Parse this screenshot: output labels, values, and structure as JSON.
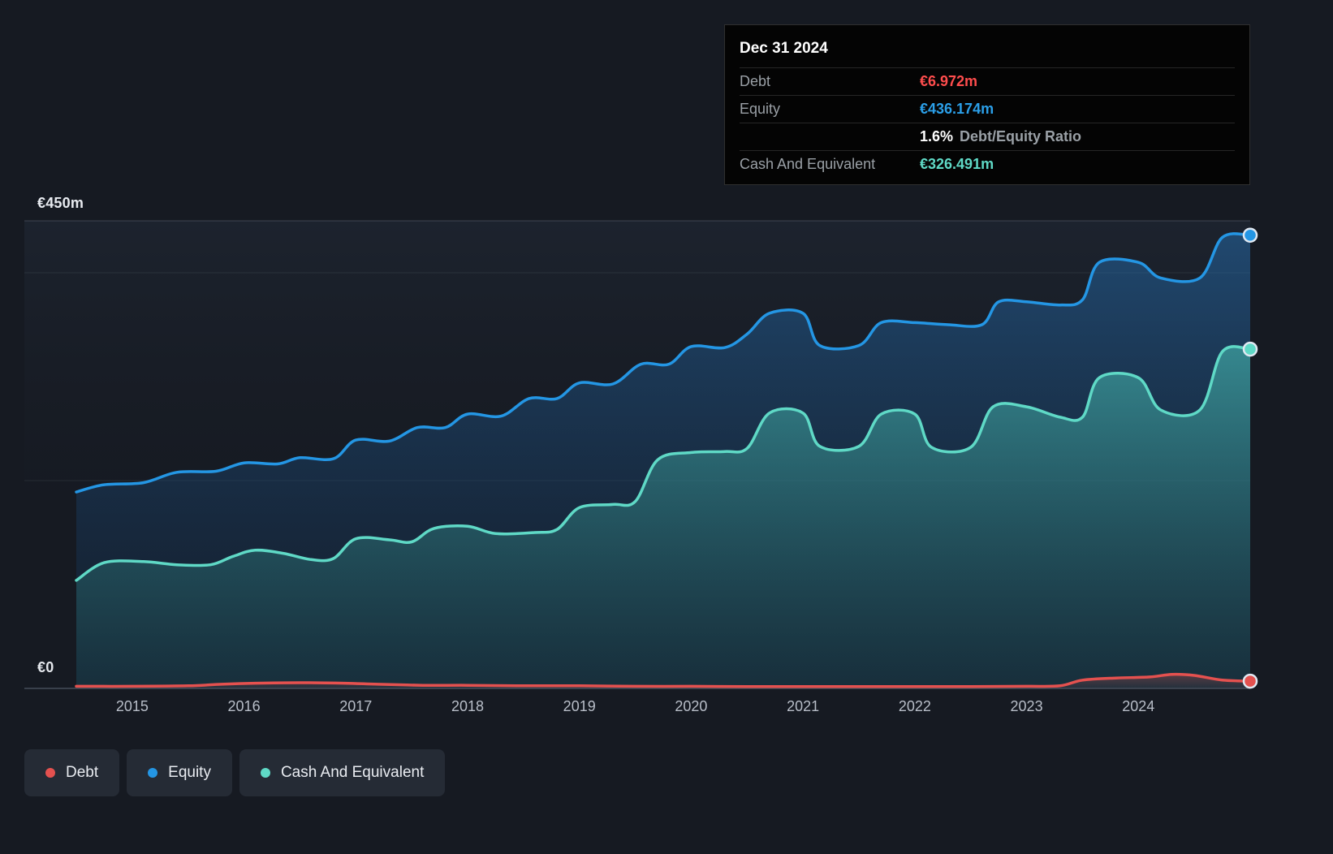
{
  "y_axis": {
    "top_label": "€450m",
    "zero_label": "€0"
  },
  "x_axis": {
    "years": [
      "2015",
      "2016",
      "2017",
      "2018",
      "2019",
      "2020",
      "2021",
      "2022",
      "2023",
      "2024"
    ]
  },
  "tooltip": {
    "date": "Dec 31 2024",
    "rows": [
      {
        "label": "Debt",
        "value": "€6.972m",
        "color": "#ff4d4d"
      },
      {
        "label": "Equity",
        "value": "€436.174m",
        "color": "#2b9fe8"
      },
      {
        "label": "",
        "value": "1.6%",
        "suffix": "Debt/Equity Ratio",
        "color": "#ffffff"
      },
      {
        "label": "Cash And Equivalent",
        "value": "€326.491m",
        "color": "#5fd9c6"
      }
    ]
  },
  "legend": [
    {
      "label": "Debt",
      "color": "#e4514f"
    },
    {
      "label": "Equity",
      "color": "#2496e4"
    },
    {
      "label": "Cash And Equivalent",
      "color": "#5fd9c6"
    }
  ],
  "chart_data": {
    "type": "area",
    "x_unit": "year",
    "x_range": [
      2014.5,
      2025.0
    ],
    "ylim": [
      0,
      450
    ],
    "y_tick_labels": [
      "€0",
      "€450m"
    ],
    "x_tick_labels": [
      "2015",
      "2016",
      "2017",
      "2018",
      "2019",
      "2020",
      "2021",
      "2022",
      "2023",
      "2024"
    ],
    "gridlines": [
      450,
      400,
      200,
      0
    ],
    "grid": true,
    "legend_position": "bottom-left",
    "series": [
      {
        "name": "Equity",
        "color": "#2496e4",
        "fill_top": "rgba(37,110,176,0.50)",
        "fill_bottom": "rgba(18,42,72,0.28)",
        "end_value_label": "€436.174m",
        "points": [
          [
            2014.5,
            189
          ],
          [
            2014.75,
            196
          ],
          [
            2015.1,
            198
          ],
          [
            2015.4,
            208
          ],
          [
            2015.75,
            209
          ],
          [
            2016.0,
            217
          ],
          [
            2016.3,
            216
          ],
          [
            2016.5,
            222
          ],
          [
            2016.8,
            221
          ],
          [
            2017.0,
            239
          ],
          [
            2017.3,
            238
          ],
          [
            2017.55,
            251
          ],
          [
            2017.8,
            251
          ],
          [
            2018.0,
            264
          ],
          [
            2018.3,
            262
          ],
          [
            2018.55,
            279
          ],
          [
            2018.8,
            279
          ],
          [
            2019.0,
            294
          ],
          [
            2019.3,
            293
          ],
          [
            2019.55,
            312
          ],
          [
            2019.8,
            312
          ],
          [
            2020.0,
            329
          ],
          [
            2020.3,
            328
          ],
          [
            2020.5,
            341
          ],
          [
            2020.7,
            361
          ],
          [
            2021.0,
            361
          ],
          [
            2021.15,
            330
          ],
          [
            2021.5,
            330
          ],
          [
            2021.7,
            352
          ],
          [
            2022.0,
            352
          ],
          [
            2022.3,
            350
          ],
          [
            2022.6,
            350
          ],
          [
            2022.75,
            372
          ],
          [
            2023.0,
            372
          ],
          [
            2023.3,
            369
          ],
          [
            2023.5,
            374
          ],
          [
            2023.65,
            410
          ],
          [
            2024.0,
            410
          ],
          [
            2024.2,
            395
          ],
          [
            2024.55,
            395
          ],
          [
            2024.75,
            434
          ],
          [
            2025.0,
            436.174
          ]
        ]
      },
      {
        "name": "Cash And Equivalent",
        "color": "#5fd9c6",
        "fill_top": "rgba(74,198,186,0.55)",
        "fill_bottom": "rgba(28,76,86,0.35)",
        "end_value_label": "€326.491m",
        "points": [
          [
            2014.5,
            104
          ],
          [
            2014.75,
            121
          ],
          [
            2015.1,
            122
          ],
          [
            2015.4,
            119
          ],
          [
            2015.7,
            119
          ],
          [
            2015.9,
            127
          ],
          [
            2016.1,
            133
          ],
          [
            2016.35,
            130
          ],
          [
            2016.6,
            124
          ],
          [
            2016.8,
            125
          ],
          [
            2017.0,
            144
          ],
          [
            2017.3,
            143
          ],
          [
            2017.5,
            141
          ],
          [
            2017.7,
            154
          ],
          [
            2018.0,
            156
          ],
          [
            2018.25,
            149
          ],
          [
            2018.6,
            150
          ],
          [
            2018.8,
            153
          ],
          [
            2019.0,
            174
          ],
          [
            2019.3,
            177
          ],
          [
            2019.5,
            180
          ],
          [
            2019.7,
            220
          ],
          [
            2020.0,
            227
          ],
          [
            2020.3,
            228
          ],
          [
            2020.5,
            231
          ],
          [
            2020.7,
            265
          ],
          [
            2021.0,
            265
          ],
          [
            2021.15,
            233
          ],
          [
            2021.5,
            233
          ],
          [
            2021.7,
            264
          ],
          [
            2022.0,
            264
          ],
          [
            2022.15,
            232
          ],
          [
            2022.5,
            232
          ],
          [
            2022.7,
            271
          ],
          [
            2023.0,
            271
          ],
          [
            2023.3,
            261
          ],
          [
            2023.5,
            261
          ],
          [
            2023.65,
            299
          ],
          [
            2024.0,
            299
          ],
          [
            2024.2,
            268
          ],
          [
            2024.55,
            268
          ],
          [
            2024.75,
            324
          ],
          [
            2025.0,
            326.491
          ]
        ]
      },
      {
        "name": "Debt",
        "color": "#e4514f",
        "fill_top": "rgba(226,81,79,0.30)",
        "fill_bottom": "rgba(226,81,79,0.06)",
        "end_value_label": "€6.972m",
        "points": [
          [
            2014.5,
            2
          ],
          [
            2015.0,
            2
          ],
          [
            2015.5,
            2.5
          ],
          [
            2015.8,
            4
          ],
          [
            2016.1,
            5
          ],
          [
            2016.5,
            5.5
          ],
          [
            2016.9,
            5
          ],
          [
            2017.2,
            4
          ],
          [
            2017.6,
            3
          ],
          [
            2018.0,
            3
          ],
          [
            2018.5,
            2.5
          ],
          [
            2019.0,
            2.5
          ],
          [
            2019.5,
            2
          ],
          [
            2020.0,
            2
          ],
          [
            2020.5,
            1.8
          ],
          [
            2021.0,
            1.8
          ],
          [
            2021.5,
            1.8
          ],
          [
            2022.0,
            1.8
          ],
          [
            2022.5,
            1.8
          ],
          [
            2023.0,
            2
          ],
          [
            2023.3,
            2.5
          ],
          [
            2023.5,
            8
          ],
          [
            2023.8,
            10
          ],
          [
            2024.1,
            11
          ],
          [
            2024.3,
            13.5
          ],
          [
            2024.5,
            12.5
          ],
          [
            2024.75,
            8
          ],
          [
            2025.0,
            6.972
          ]
        ]
      }
    ]
  }
}
